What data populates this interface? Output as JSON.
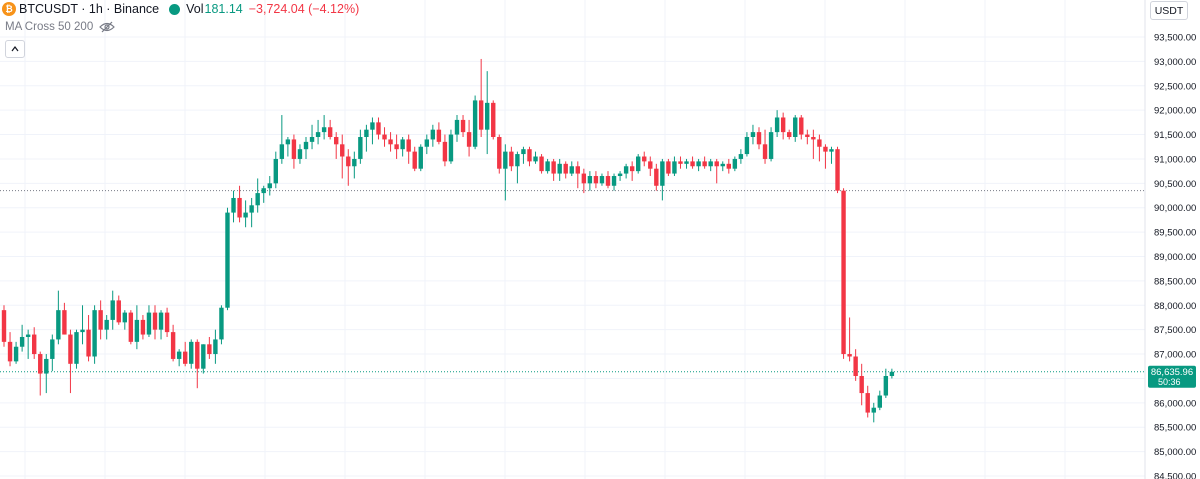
{
  "header": {
    "symbol": "BTCUSDT · 1h · Binance",
    "vol_label": "Vol",
    "vol_value": "181.14",
    "change": "−3,724.04 (−4.12%)",
    "indicator": "MA Cross 50 200",
    "currency": "USDT"
  },
  "icons": {
    "coin": "bitcoin-icon",
    "status": "status-dot-icon",
    "eye": "eye-crossed-icon",
    "collapse": "chevron-up-icon"
  },
  "colors": {
    "up": "#089981",
    "down": "#f23645",
    "grid": "#f0f3fa",
    "price_tag": "#089981"
  },
  "price_tag": {
    "price": "86,635.96",
    "countdown": "50:36"
  },
  "chart_data": {
    "type": "candlestick",
    "ylim": [
      84500,
      93500
    ],
    "y_ticks": [
      {
        "value": 84500,
        "label": "84,500.00"
      },
      {
        "value": 85000,
        "label": "85,000.00"
      },
      {
        "value": 85500,
        "label": "85,500.00"
      },
      {
        "value": 86000,
        "label": "86,000.00"
      },
      {
        "value": 86500,
        "label": "86,500.00"
      },
      {
        "value": 87000,
        "label": "87,000.00"
      },
      {
        "value": 87500,
        "label": "87,500.00"
      },
      {
        "value": 88000,
        "label": "88,000.00"
      },
      {
        "value": 88500,
        "label": "88,500.00"
      },
      {
        "value": 89000,
        "label": "89,000.00"
      },
      {
        "value": 89500,
        "label": "89,500.00"
      },
      {
        "value": 90000,
        "label": "90,000.00"
      },
      {
        "value": 90500,
        "label": "90,500.00"
      },
      {
        "value": 91000,
        "label": "91,000.00"
      },
      {
        "value": 91500,
        "label": "91,500.00"
      },
      {
        "value": 92000,
        "label": "92,000.00"
      },
      {
        "value": 92500,
        "label": "92,500.00"
      },
      {
        "value": 93000,
        "label": "93,000.00"
      },
      {
        "value": 93500,
        "label": "93,500.00"
      }
    ],
    "reference_lines": [
      90350,
      86636
    ],
    "candles": [
      [
        87900,
        88000,
        87150,
        87250
      ],
      [
        87250,
        87450,
        86750,
        86850
      ],
      [
        86850,
        87250,
        86800,
        87150
      ],
      [
        87150,
        87600,
        87050,
        87350
      ],
      [
        87350,
        87500,
        86900,
        87400
      ],
      [
        87400,
        87550,
        86900,
        87000
      ],
      [
        87000,
        87050,
        86150,
        86600
      ],
      [
        86600,
        87000,
        86200,
        86900
      ],
      [
        86900,
        87400,
        86650,
        87300
      ],
      [
        87300,
        88300,
        87200,
        87900
      ],
      [
        87900,
        88050,
        87400,
        87400
      ],
      [
        87400,
        87500,
        86200,
        86800
      ],
      [
        86800,
        87500,
        86700,
        87450
      ],
      [
        87450,
        88000,
        87200,
        87500
      ],
      [
        87500,
        87800,
        86850,
        86950
      ],
      [
        86950,
        88000,
        86800,
        87900
      ],
      [
        87900,
        88100,
        87300,
        87500
      ],
      [
        87500,
        87800,
        87300,
        87700
      ],
      [
        87700,
        88300,
        87500,
        88100
      ],
      [
        88100,
        88200,
        87600,
        87650
      ],
      [
        87650,
        87900,
        87500,
        87850
      ],
      [
        87850,
        87900,
        87200,
        87250
      ],
      [
        87250,
        88000,
        87100,
        87700
      ],
      [
        87700,
        87800,
        87300,
        87400
      ],
      [
        87400,
        88000,
        87350,
        87850
      ],
      [
        87850,
        88000,
        87300,
        87500
      ],
      [
        87500,
        87900,
        87300,
        87850
      ],
      [
        87850,
        87950,
        87350,
        87450
      ],
      [
        87450,
        87600,
        86850,
        86900
      ],
      [
        86900,
        87100,
        86750,
        87050
      ],
      [
        87050,
        87250,
        86750,
        86800
      ],
      [
        86800,
        87300,
        86700,
        87250
      ],
      [
        87250,
        87300,
        86300,
        86700
      ],
      [
        86700,
        87200,
        86600,
        87200
      ],
      [
        87200,
        87350,
        86900,
        87000
      ],
      [
        87000,
        87500,
        86800,
        87300
      ],
      [
        87300,
        88000,
        87200,
        87950
      ],
      [
        87950,
        90000,
        87900,
        89900
      ],
      [
        89900,
        90350,
        89700,
        90200
      ],
      [
        90200,
        90450,
        89700,
        89800
      ],
      [
        89800,
        90150,
        89600,
        89900
      ],
      [
        89900,
        90200,
        89600,
        90050
      ],
      [
        90050,
        90600,
        89900,
        90300
      ],
      [
        90300,
        90450,
        90100,
        90400
      ],
      [
        90400,
        90650,
        90250,
        90500
      ],
      [
        90500,
        91150,
        90400,
        91000
      ],
      [
        91000,
        91900,
        90900,
        91300
      ],
      [
        91300,
        91450,
        91050,
        91400
      ],
      [
        91400,
        91500,
        90800,
        91000
      ],
      [
        91000,
        91300,
        90900,
        91200
      ],
      [
        91200,
        91450,
        91000,
        91350
      ],
      [
        91350,
        91700,
        91200,
        91450
      ],
      [
        91450,
        91800,
        91300,
        91550
      ],
      [
        91550,
        91900,
        91400,
        91650
      ],
      [
        91650,
        91800,
        91400,
        91450
      ],
      [
        91450,
        91550,
        91000,
        91300
      ],
      [
        91300,
        91500,
        90600,
        91050
      ],
      [
        91050,
        91200,
        90450,
        90850
      ],
      [
        90850,
        91150,
        90600,
        91000
      ],
      [
        91000,
        91600,
        90900,
        91450
      ],
      [
        91450,
        91700,
        91150,
        91600
      ],
      [
        91600,
        91850,
        91300,
        91750
      ],
      [
        91750,
        91850,
        91400,
        91500
      ],
      [
        91500,
        91650,
        91250,
        91400
      ],
      [
        91400,
        91550,
        91150,
        91300
      ],
      [
        91300,
        91500,
        91000,
        91200
      ],
      [
        91200,
        91450,
        91050,
        91400
      ],
      [
        91400,
        91500,
        90900,
        91150
      ],
      [
        91150,
        91250,
        90750,
        90800
      ],
      [
        90800,
        91300,
        90750,
        91250
      ],
      [
        91250,
        91500,
        91100,
        91400
      ],
      [
        91400,
        91700,
        91250,
        91600
      ],
      [
        91600,
        91750,
        91300,
        91350
      ],
      [
        91350,
        91500,
        90850,
        90950
      ],
      [
        90950,
        91600,
        90900,
        91500
      ],
      [
        91500,
        91900,
        91350,
        91800
      ],
      [
        91800,
        91900,
        91450,
        91550
      ],
      [
        91550,
        91800,
        91050,
        91250
      ],
      [
        91250,
        92300,
        91200,
        92200
      ],
      [
        92200,
        93050,
        91450,
        91600
      ],
      [
        91600,
        92800,
        91100,
        92150
      ],
      [
        92150,
        92200,
        91400,
        91450
      ],
      [
        91450,
        91500,
        90700,
        90800
      ],
      [
        90800,
        91300,
        90150,
        91150
      ],
      [
        91150,
        91250,
        90750,
        90850
      ],
      [
        90850,
        91150,
        90500,
        91100
      ],
      [
        91100,
        91250,
        90900,
        91200
      ],
      [
        91200,
        91250,
        90850,
        90950
      ],
      [
        90950,
        91150,
        90900,
        91050
      ],
      [
        91050,
        91100,
        90700,
        90750
      ],
      [
        90750,
        91000,
        90700,
        90950
      ],
      [
        90950,
        91000,
        90550,
        90700
      ],
      [
        90700,
        91000,
        90550,
        90900
      ],
      [
        90900,
        90950,
        90600,
        90700
      ],
      [
        90700,
        90950,
        90650,
        90850
      ],
      [
        90850,
        90950,
        90400,
        90700
      ],
      [
        90700,
        90800,
        90300,
        90500
      ],
      [
        90500,
        90750,
        90350,
        90650
      ],
      [
        90650,
        90750,
        90400,
        90500
      ],
      [
        90500,
        90700,
        90450,
        90650
      ],
      [
        90650,
        90750,
        90400,
        90450
      ],
      [
        90450,
        90700,
        90350,
        90650
      ],
      [
        90650,
        90750,
        90550,
        90700
      ],
      [
        90700,
        90900,
        90600,
        90850
      ],
      [
        90850,
        90950,
        90550,
        90750
      ],
      [
        90750,
        91100,
        90700,
        91050
      ],
      [
        91050,
        91150,
        90850,
        90950
      ],
      [
        90950,
        91050,
        90650,
        90800
      ],
      [
        90800,
        90900,
        90350,
        90450
      ],
      [
        90450,
        91000,
        90150,
        90950
      ],
      [
        90950,
        91000,
        90650,
        90700
      ],
      [
        90700,
        91050,
        90650,
        90950
      ],
      [
        90950,
        91050,
        90800,
        90900
      ],
      [
        90900,
        91000,
        90800,
        90950
      ],
      [
        90950,
        91050,
        90800,
        90850
      ],
      [
        90850,
        91000,
        90750,
        90950
      ],
      [
        90950,
        91050,
        90800,
        90850
      ],
      [
        90850,
        91000,
        90750,
        90950
      ],
      [
        90950,
        91000,
        90500,
        90850
      ],
      [
        90850,
        90950,
        90750,
        90900
      ],
      [
        90900,
        91000,
        90700,
        90800
      ],
      [
        90800,
        91050,
        90750,
        91000
      ],
      [
        91000,
        91200,
        90900,
        91100
      ],
      [
        91100,
        91550,
        91050,
        91450
      ],
      [
        91450,
        91700,
        91300,
        91550
      ],
      [
        91550,
        91650,
        91200,
        91300
      ],
      [
        91300,
        91600,
        90900,
        91000
      ],
      [
        91000,
        91650,
        90950,
        91550
      ],
      [
        91550,
        92000,
        91450,
        91850
      ],
      [
        91850,
        91950,
        91400,
        91550
      ],
      [
        91550,
        91600,
        91400,
        91450
      ],
      [
        91450,
        91900,
        91350,
        91850
      ],
      [
        91850,
        91900,
        91400,
        91500
      ],
      [
        91500,
        91600,
        91300,
        91450
      ],
      [
        91450,
        91600,
        91000,
        91400
      ],
      [
        91400,
        91500,
        90950,
        91250
      ],
      [
        91250,
        91300,
        90800,
        91150
      ],
      [
        91150,
        91250,
        90900,
        91200
      ],
      [
        91200,
        91250,
        90300,
        90350
      ],
      [
        90350,
        90400,
        86900,
        87000
      ],
      [
        87000,
        87750,
        86850,
        86950
      ],
      [
        86950,
        87100,
        86450,
        86550
      ],
      [
        86550,
        86800,
        85950,
        86200
      ],
      [
        86200,
        86350,
        85700,
        85800
      ],
      [
        85800,
        86000,
        85600,
        85900
      ],
      [
        85900,
        86250,
        85850,
        86150
      ],
      [
        86150,
        86700,
        86100,
        86550
      ],
      [
        86550,
        86700,
        86500,
        86636
      ]
    ]
  }
}
